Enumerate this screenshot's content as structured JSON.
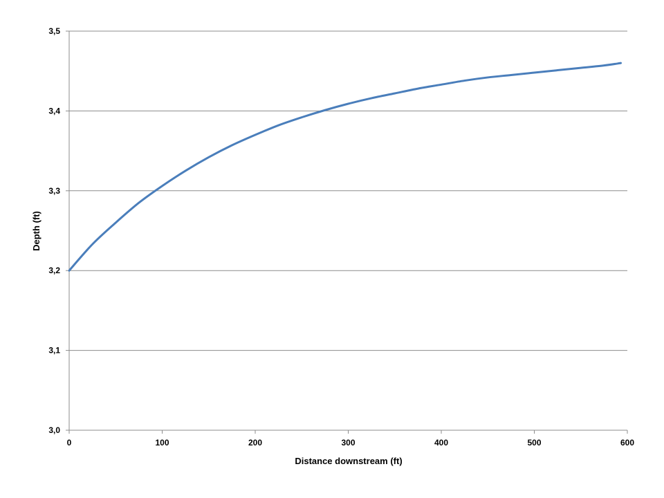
{
  "chart_data": {
    "type": "line",
    "title": "",
    "xlabel": "Distance downstream (ft)",
    "ylabel": "Depth (ft)",
    "xlim": [
      0,
      600
    ],
    "ylim": [
      3.0,
      3.5
    ],
    "x_ticks": [
      "0",
      "100",
      "200",
      "300",
      "400",
      "500",
      "600"
    ],
    "y_ticks": [
      "3,0",
      "3,1",
      "3,2",
      "3,3",
      "3,4",
      "3,5"
    ],
    "grid": "horizontal",
    "legend": "none",
    "series": [
      {
        "color": "#4a7ebb",
        "x": [
          0,
          25,
          50,
          75,
          100,
          125,
          150,
          175,
          200,
          225,
          250,
          275,
          300,
          325,
          350,
          375,
          400,
          425,
          450,
          475,
          500,
          525,
          550,
          575,
          593
        ],
        "y": [
          3.2,
          3.233,
          3.26,
          3.285,
          3.306,
          3.325,
          3.342,
          3.357,
          3.37,
          3.382,
          3.392,
          3.401,
          3.409,
          3.416,
          3.422,
          3.428,
          3.433,
          3.438,
          3.442,
          3.445,
          3.448,
          3.451,
          3.454,
          3.457,
          3.46
        ]
      }
    ]
  }
}
